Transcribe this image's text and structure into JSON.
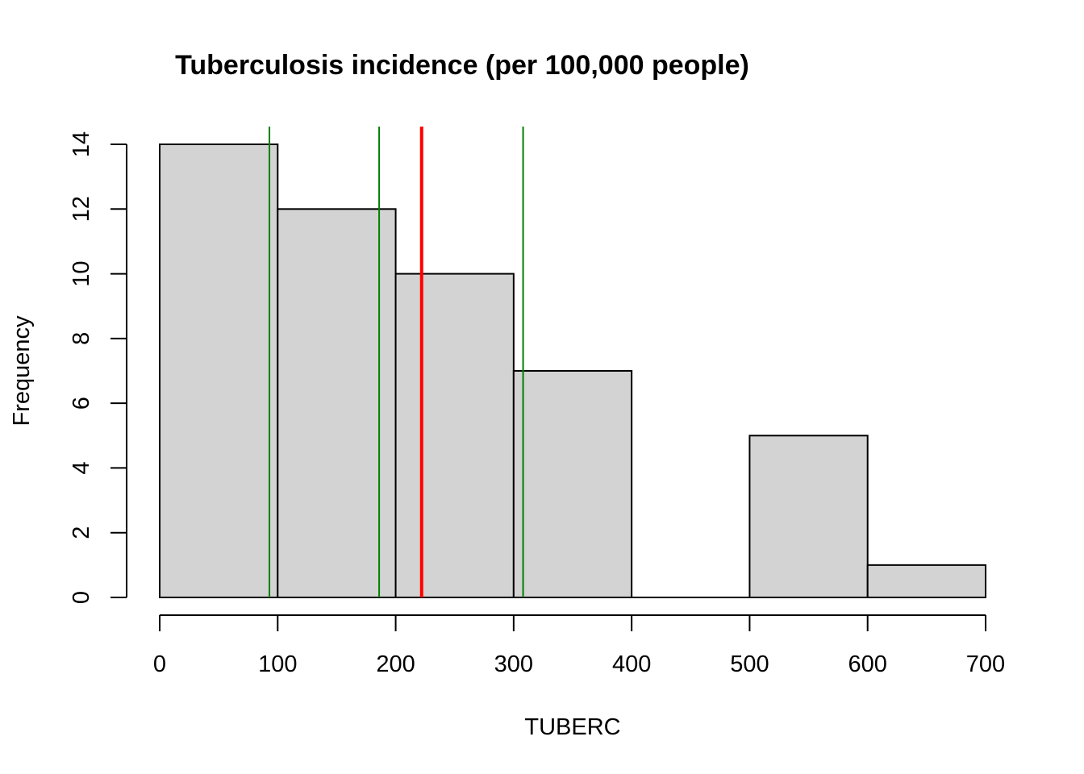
{
  "chart_data": {
    "type": "bar",
    "subtype": "histogram",
    "title": "Tuberculosis incidence (per 100,000 people)",
    "xlabel": "TUBERC",
    "ylabel": "Frequency",
    "bins": [
      {
        "start": 0,
        "end": 100,
        "count": 14
      },
      {
        "start": 100,
        "end": 200,
        "count": 12
      },
      {
        "start": 200,
        "end": 300,
        "count": 10
      },
      {
        "start": 300,
        "end": 400,
        "count": 7
      },
      {
        "start": 400,
        "end": 500,
        "count": 0
      },
      {
        "start": 500,
        "end": 600,
        "count": 5
      },
      {
        "start": 600,
        "end": 700,
        "count": 1
      }
    ],
    "xlim": [
      0,
      700
    ],
    "ylim": [
      0,
      14
    ],
    "x_ticks": [
      "0",
      "100",
      "200",
      "300",
      "400",
      "500",
      "600",
      "700"
    ],
    "y_ticks": [
      "0",
      "2",
      "4",
      "6",
      "8",
      "10",
      "12",
      "14"
    ],
    "bar_fill": "#d3d3d3",
    "bar_stroke": "#000000",
    "grid": false,
    "reference_lines": [
      {
        "x": 93,
        "color": "#008000",
        "width": "thin"
      },
      {
        "x": 186,
        "color": "#008000",
        "width": "thin"
      },
      {
        "x": 222,
        "color": "#ff0000",
        "width": "thick"
      },
      {
        "x": 308,
        "color": "#008000",
        "width": "thin"
      }
    ]
  }
}
